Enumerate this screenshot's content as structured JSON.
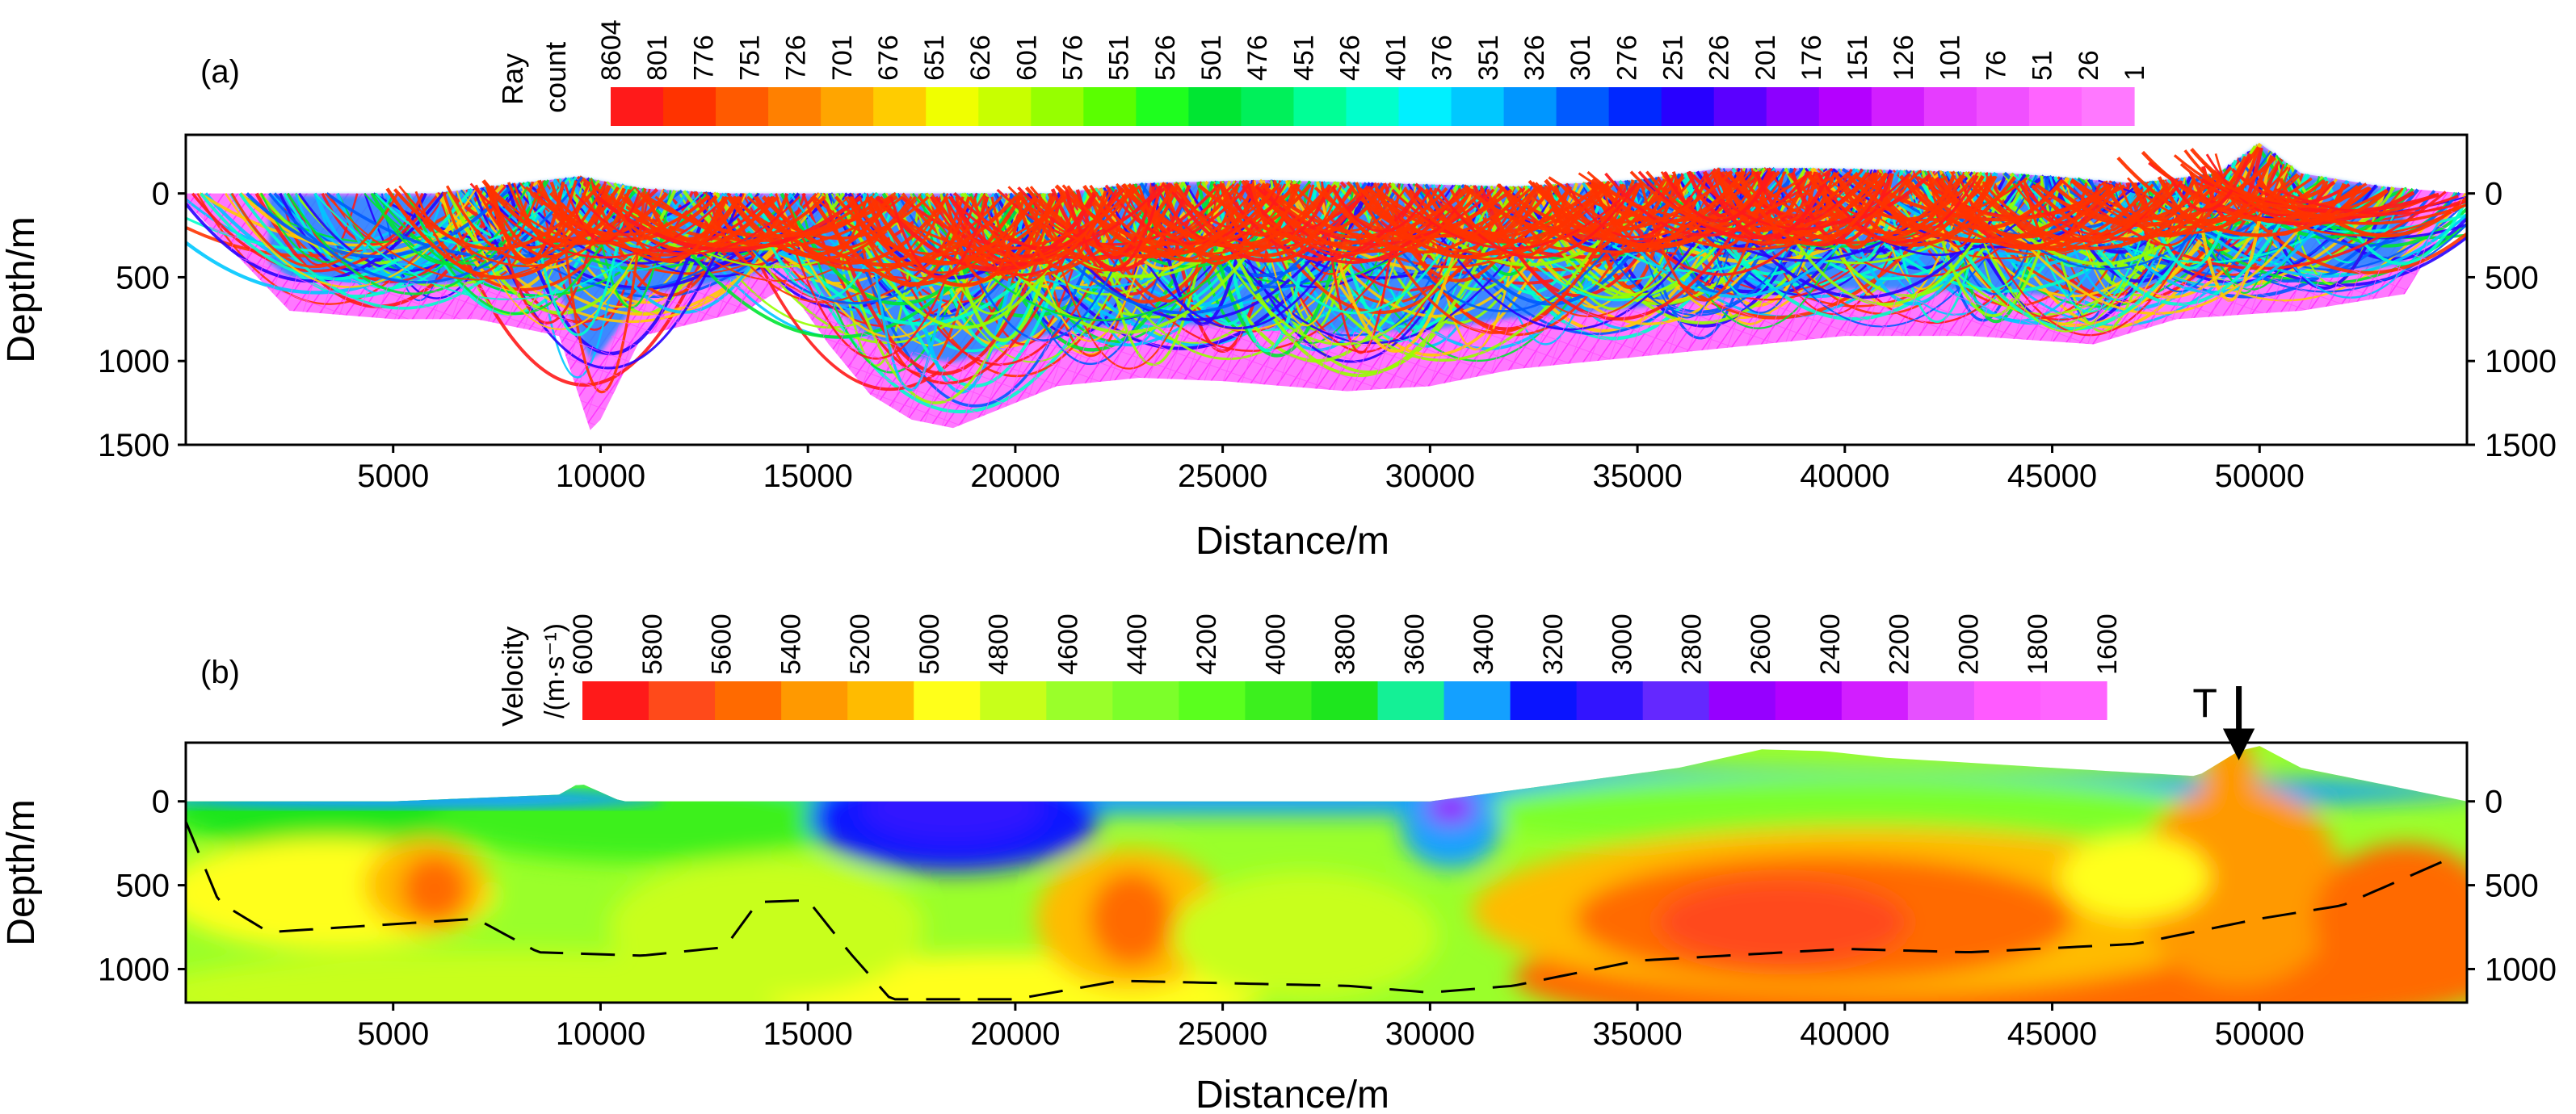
{
  "chart_data": [
    {
      "panel_label": "(a)",
      "type": "heatmap",
      "xlabel": "Distance/m",
      "ylabel": "Depth/m",
      "xlim": [
        0,
        55000
      ],
      "ylim": [
        1500,
        -350
      ],
      "x_ticks": [
        5000,
        10000,
        15000,
        20000,
        25000,
        30000,
        35000,
        40000,
        45000,
        50000
      ],
      "y_ticks": [
        0,
        500,
        1000,
        1500
      ],
      "y_tick_labels_right": true,
      "colorbar": {
        "title": [
          "Ray",
          "count"
        ],
        "labels": [
          "8604",
          "801",
          "776",
          "751",
          "726",
          "701",
          "676",
          "651",
          "626",
          "601",
          "576",
          "551",
          "526",
          "501",
          "476",
          "451",
          "426",
          "401",
          "376",
          "351",
          "326",
          "301",
          "276",
          "251",
          "226",
          "201",
          "176",
          "151",
          "126",
          "101",
          "76",
          "51",
          "26",
          "1"
        ],
        "colors": [
          "#ff1a1a",
          "#ff3300",
          "#ff5a00",
          "#ff8000",
          "#ffa500",
          "#ffcc00",
          "#f0ff00",
          "#c8ff00",
          "#96ff00",
          "#5aff00",
          "#1eff1e",
          "#00e632",
          "#00f05a",
          "#00ff96",
          "#00ffcc",
          "#00f0ff",
          "#00c8ff",
          "#0096ff",
          "#005aff",
          "#0028ff",
          "#2800ff",
          "#5a00ff",
          "#8c00ff",
          "#b400ff",
          "#d21eff",
          "#e63cff",
          "#f050ff",
          "#ff64ff",
          "#ff78ff"
        ]
      },
      "surface_x": [
        0,
        3000,
        6000,
        8000,
        9500,
        11000,
        13000,
        15000,
        17000,
        19000,
        21000,
        23000,
        26000,
        29000,
        32000,
        35000,
        37000,
        39000,
        41000,
        44000,
        47000,
        49000,
        50000,
        51000,
        53000,
        55000
      ],
      "surface_depth": [
        0,
        0,
        0,
        -60,
        -100,
        -30,
        0,
        0,
        0,
        0,
        0,
        -60,
        -80,
        -60,
        -40,
        -80,
        -150,
        -150,
        -140,
        -120,
        -60,
        -120,
        -300,
        -120,
        -40,
        0
      ],
      "coverage_bottom_x": [
        0,
        2500,
        5000,
        7000,
        9000,
        9800,
        11000,
        13500,
        14500,
        15500,
        16500,
        17500,
        18500,
        19500,
        21000,
        23000,
        25000,
        28000,
        30000,
        32000,
        34000,
        36000,
        38000,
        40000,
        43000,
        46000,
        48000,
        51000,
        53500,
        55000
      ],
      "coverage_bottom_depth": [
        50,
        700,
        750,
        750,
        850,
        1450,
        850,
        700,
        550,
        900,
        1200,
        1350,
        1400,
        1300,
        1150,
        1100,
        1120,
        1180,
        1150,
        1050,
        1000,
        950,
        900,
        850,
        850,
        900,
        750,
        700,
        600,
        0
      ],
      "dense_band_x": [
        7000,
        10000,
        13000,
        15000,
        17000,
        20000,
        24000,
        28000,
        32000,
        36000,
        40000,
        44000,
        47000,
        50000,
        53000
      ],
      "dense_band_depth": [
        500,
        350,
        400,
        300,
        500,
        450,
        380,
        350,
        350,
        300,
        300,
        280,
        300,
        200,
        150
      ]
    },
    {
      "panel_label": "(b)",
      "type": "heatmap",
      "xlabel": "Distance/m",
      "ylabel": "Depth/m",
      "xlim": [
        0,
        55000
      ],
      "ylim": [
        1200,
        -350
      ],
      "x_ticks": [
        5000,
        10000,
        15000,
        20000,
        25000,
        30000,
        35000,
        40000,
        45000,
        50000
      ],
      "y_ticks": [
        0,
        500,
        1000
      ],
      "y_tick_labels_right": true,
      "colorbar": {
        "title": [
          "Velocity",
          "/(m·s⁻¹)"
        ],
        "labels": [
          "6000",
          "5800",
          "5600",
          "5400",
          "5200",
          "5000",
          "4800",
          "4600",
          "4400",
          "4200",
          "4000",
          "3800",
          "3600",
          "3400",
          "3200",
          "3000",
          "2800",
          "2600",
          "2400",
          "2200",
          "2000",
          "1800",
          "1600"
        ],
        "colors": [
          "#ff1a1a",
          "#ff4a1a",
          "#ff6a00",
          "#ff9900",
          "#ffbb00",
          "#ffff1a",
          "#c8ff1a",
          "#9aff2a",
          "#7cff2a",
          "#5aff1e",
          "#3cf01e",
          "#1ee61e",
          "#14f096",
          "#14a0ff",
          "#0a14ff",
          "#3214ff",
          "#6428ff",
          "#9600ff",
          "#b400ff",
          "#d21eff",
          "#e650ff",
          "#ff5aff",
          "#ff64ff"
        ]
      },
      "annotation": "T",
      "annotation_x": 49500,
      "surface_x": [
        0,
        5000,
        9000,
        9500,
        10500,
        15000,
        20000,
        30000,
        36000,
        38000,
        39500,
        41000,
        45000,
        48500,
        49500,
        50000,
        51000,
        55000
      ],
      "surface_depth": [
        0,
        0,
        -40,
        -110,
        0,
        0,
        0,
        0,
        -200,
        -310,
        -300,
        -260,
        -200,
        -150,
        -300,
        -330,
        -200,
        0
      ],
      "dashed_interface_x": [
        0,
        800,
        2000,
        7000,
        8500,
        11000,
        13000,
        13800,
        15000,
        16000,
        17000,
        20000,
        22500,
        28000,
        30000,
        32000,
        35000,
        40000,
        43000,
        47000,
        50000,
        52000,
        54500
      ],
      "dashed_interface_depth": [
        120,
        600,
        780,
        700,
        900,
        920,
        870,
        600,
        590,
        900,
        1180,
        1180,
        1070,
        1100,
        1140,
        1100,
        950,
        880,
        900,
        850,
        700,
        620,
        350
      ]
    }
  ]
}
